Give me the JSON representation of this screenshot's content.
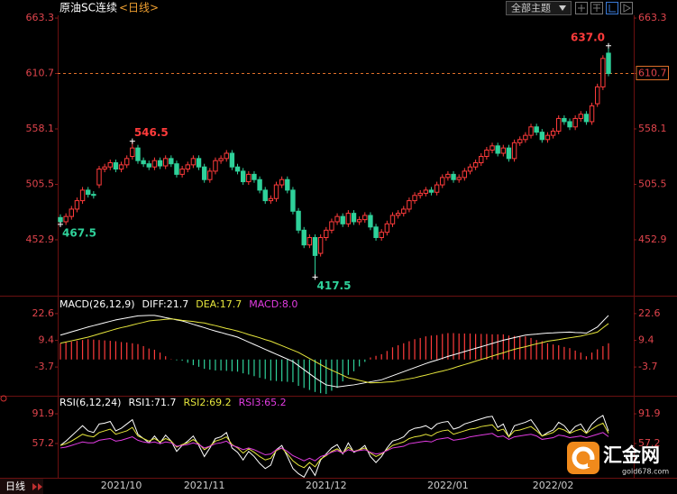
{
  "header": {
    "title": "原油SC连续",
    "period": "<日线>",
    "theme_button": "全部主题"
  },
  "footer": {
    "period": "日线",
    "logo": "汇金网",
    "site": "gold678.com"
  },
  "chart_data": [
    {
      "type": "candlestick",
      "categories": [
        null,
        null,
        null,
        null,
        null,
        null,
        null,
        null,
        null,
        null,
        null,
        "2021/10",
        null,
        null,
        null,
        null,
        null,
        null,
        null,
        null,
        null,
        null,
        null,
        null,
        null,
        null,
        "2021/11",
        null,
        null,
        null,
        null,
        null,
        null,
        null,
        null,
        null,
        null,
        null,
        null,
        null,
        null,
        null,
        null,
        null,
        null,
        null,
        null,
        null,
        "2021/12",
        null,
        null,
        null,
        null,
        null,
        null,
        null,
        null,
        null,
        null,
        null,
        null,
        null,
        null,
        null,
        null,
        null,
        null,
        null,
        null,
        null,
        "2022/01",
        null,
        null,
        null,
        null,
        null,
        null,
        null,
        null,
        null,
        null,
        null,
        null,
        null,
        null,
        null,
        null,
        null,
        null,
        "2022/02",
        null,
        null,
        null,
        null,
        null,
        null,
        null,
        null,
        null,
        null
      ],
      "open": [
        474,
        470,
        475,
        482,
        490,
        500,
        496,
        505,
        520,
        522,
        526,
        520,
        524,
        532,
        540,
        528,
        525,
        522,
        528,
        523,
        530,
        525,
        515,
        520,
        524,
        530,
        522,
        510,
        518,
        528,
        530,
        535,
        522,
        518,
        508,
        515,
        510,
        500,
        490,
        492,
        505,
        510,
        500,
        480,
        462,
        448,
        455,
        440,
        455,
        462,
        470,
        475,
        468,
        478,
        470,
        472,
        476,
        465,
        455,
        460,
        468,
        476,
        478,
        482,
        490,
        495,
        497,
        500,
        498,
        505,
        512,
        515,
        510,
        512,
        518,
        522,
        526,
        532,
        538,
        542,
        535,
        540,
        530,
        545,
        548,
        552,
        560,
        555,
        548,
        552,
        556,
        568,
        565,
        560,
        568,
        572,
        565,
        582,
        598,
        630
      ],
      "high": [
        477,
        478,
        485,
        493,
        503,
        503,
        499,
        523,
        525,
        529,
        529,
        527,
        533,
        546.5,
        543,
        531,
        528,
        531,
        531,
        533,
        533,
        528,
        523,
        527,
        533,
        533,
        525,
        521,
        531,
        533,
        538,
        538,
        525,
        521,
        518,
        518,
        513,
        503,
        495,
        508,
        513,
        513,
        503,
        483,
        465,
        458,
        458,
        458,
        465,
        473,
        478,
        478,
        481,
        481,
        475,
        479,
        479,
        468,
        463,
        471,
        479,
        481,
        485,
        493,
        498,
        500,
        503,
        503,
        508,
        515,
        518,
        518,
        515,
        521,
        525,
        529,
        535,
        541,
        545,
        545,
        543,
        543,
        548,
        551,
        555,
        563,
        563,
        558,
        555,
        559,
        571,
        571,
        568,
        571,
        575,
        575,
        583,
        601,
        628,
        637
      ],
      "low": [
        467.5,
        467,
        472,
        479,
        487,
        493,
        492,
        502,
        517,
        519,
        517,
        517,
        521,
        529,
        525,
        522,
        519,
        519,
        520,
        520,
        522,
        512,
        512,
        517,
        521,
        519,
        507,
        507,
        515,
        525,
        527,
        519,
        515,
        505,
        505,
        507,
        497,
        487,
        487,
        489,
        502,
        497,
        477,
        459,
        445,
        445,
        417.5,
        437,
        452,
        459,
        467,
        465,
        465,
        467,
        467,
        469,
        462,
        452,
        452,
        457,
        465,
        473,
        475,
        479,
        487,
        492,
        494,
        495,
        495,
        502,
        509,
        507,
        507,
        509,
        515,
        519,
        523,
        529,
        535,
        532,
        532,
        527,
        527,
        542,
        545,
        549,
        552,
        545,
        545,
        549,
        553,
        562,
        557,
        557,
        565,
        562,
        562,
        579,
        595,
        608
      ],
      "close": [
        470,
        475,
        482,
        490,
        500,
        496,
        495,
        520,
        522,
        526,
        520,
        524,
        530,
        540,
        528,
        525,
        522,
        528,
        523,
        530,
        525,
        515,
        520,
        524,
        530,
        522,
        510,
        518,
        528,
        530,
        535,
        522,
        518,
        508,
        515,
        510,
        500,
        490,
        492,
        505,
        510,
        500,
        480,
        462,
        448,
        455,
        438,
        455,
        462,
        470,
        475,
        468,
        478,
        470,
        472,
        476,
        465,
        455,
        460,
        468,
        476,
        478,
        482,
        490,
        495,
        497,
        500,
        498,
        505,
        512,
        515,
        510,
        512,
        518,
        522,
        526,
        532,
        538,
        542,
        535,
        540,
        530,
        545,
        548,
        552,
        560,
        555,
        548,
        552,
        556,
        568,
        565,
        560,
        568,
        572,
        565,
        580,
        598,
        625,
        610.7
      ],
      "up_color": "#ff3b3b",
      "down_color": "#2fd19a",
      "last_line_color": "#e0702a",
      "ylim": [
        402.4,
        665.9
      ],
      "yticks": [
        452.9,
        505.5,
        558.1,
        610.7,
        663.3
      ],
      "annotations": [
        {
          "text": "546.5",
          "value": 546.5
        },
        {
          "text": "467.5",
          "value": 467.5
        },
        {
          "text": "417.5",
          "value": 417.5
        },
        {
          "text": "637.0",
          "value": 637
        }
      ]
    },
    {
      "type": "macd",
      "title": "MACD(26,12,9)",
      "series": [
        {
          "name": "DIFF:21.7",
          "color": "#ffffff",
          "values": [
            12,
            12.8,
            13.6,
            14.4,
            15.2,
            16,
            16.7,
            17.4,
            18.1,
            18.8,
            19.5,
            20,
            20.5,
            21,
            21.5,
            21.6,
            21.7,
            21.7,
            21.2,
            20.6,
            20.1,
            19.5,
            19,
            18.2,
            17.3,
            16.5,
            15.7,
            14.8,
            14,
            13.3,
            12.5,
            11.8,
            11,
            9.8,
            8.6,
            7.4,
            6.2,
            5,
            3.8,
            2.6,
            1.4,
            0.2,
            -1,
            -3,
            -5,
            -7,
            -9,
            -10.8,
            -12.5,
            -13,
            -13.5,
            -13.2,
            -12.8,
            -12.5,
            -12,
            -11.5,
            -11,
            -10.5,
            -10,
            -9,
            -8,
            -7,
            -6,
            -5,
            -4,
            -3,
            -2,
            -1.1,
            -0.3,
            0.6,
            1.5,
            2.3,
            3.1,
            3.9,
            4.7,
            5.5,
            6.3,
            7.1,
            7.9,
            8.7,
            9.5,
            10.1,
            10.8,
            11.4,
            12,
            12.3,
            12.5,
            12.8,
            13,
            13.1,
            13.3,
            13.4,
            13.5,
            13.3,
            13.2,
            13,
            14.5,
            16,
            18.9,
            21.7
          ]
        },
        {
          "name": "DEA:17.7",
          "color": "#e6e63c",
          "values": [
            8,
            8.6,
            9.2,
            9.8,
            10.4,
            11,
            11.8,
            12.6,
            13.4,
            14.2,
            15,
            15.7,
            16.3,
            17,
            17.7,
            18.3,
            19,
            19.3,
            19.5,
            19.8,
            20,
            19.7,
            19.3,
            19,
            18.7,
            18.3,
            18,
            17.3,
            16.7,
            16,
            15.3,
            14.7,
            14,
            13.2,
            12.3,
            11.5,
            10.7,
            9.8,
            9,
            7.9,
            6.8,
            5.7,
            4.6,
            3.5,
            2,
            0.5,
            -1,
            -2.5,
            -4,
            -5.3,
            -6.5,
            -7.8,
            -9,
            -9.6,
            -10.3,
            -10.9,
            -11.5,
            -11.4,
            -11.3,
            -11.1,
            -11,
            -10.5,
            -10,
            -9.5,
            -9,
            -8.3,
            -7.7,
            -7,
            -6.3,
            -5.7,
            -5,
            -4.2,
            -3.3,
            -2.5,
            -1.7,
            -0.8,
            0,
            0.8,
            1.7,
            2.5,
            3.3,
            4.2,
            5,
            5.7,
            6.3,
            7,
            7.7,
            8.3,
            9,
            9.4,
            9.8,
            10.3,
            10.7,
            11.1,
            11.5,
            12.2,
            12.8,
            13.5,
            15.6,
            17.7
          ]
        },
        {
          "name": "MACD:8.0",
          "color": "#e23ce2",
          "kind": "bar",
          "values": [
            8,
            8.4,
            8.8,
            9.2,
            9.6,
            10,
            9.8,
            9.6,
            9.4,
            9.2,
            9,
            8.6,
            8.4,
            8,
            7.6,
            6.6,
            5.4,
            4.8,
            3.4,
            1.6,
            0.2,
            -0.4,
            -0.6,
            -1.6,
            -2.8,
            -3.6,
            -4.6,
            -5,
            -5.4,
            -5.4,
            -5.6,
            -5.8,
            -6,
            -6.8,
            -7.4,
            -8.2,
            -9,
            -9.6,
            -10.4,
            -10.6,
            -10.8,
            -11,
            -11.2,
            -13,
            -14,
            -15,
            -16,
            -16.6,
            -17,
            -15.4,
            -14,
            -10.8,
            -7.6,
            -5.8,
            -3.4,
            -1.2,
            1,
            1.8,
            2.6,
            4.2,
            6,
            7,
            8,
            9,
            10,
            10.6,
            11.4,
            11.8,
            12,
            12.6,
            13,
            13,
            12.8,
            12.8,
            12.8,
            12.6,
            12.6,
            12.6,
            12.4,
            12.4,
            12.4,
            11.8,
            11.6,
            11.4,
            11.4,
            10.6,
            9.6,
            9,
            8,
            7.4,
            7,
            6.2,
            5.6,
            4.4,
            3.4,
            1.6,
            3.4,
            5,
            6.6,
            8
          ]
        }
      ],
      "up_color": "#ff3b3b",
      "down_color": "#2fd19a",
      "ylim": [
        -18.3,
        30.1
      ],
      "yticks": [
        -3.7,
        9.4,
        22.6
      ]
    },
    {
      "type": "line",
      "title": "RSI(6,12,24)",
      "series": [
        {
          "name": "RSI1:71.7",
          "color": "#ffffff",
          "values": [
            55,
            60,
            66,
            72,
            78,
            72,
            70,
            80,
            81,
            83,
            72,
            75,
            80,
            85,
            68,
            63,
            58,
            66,
            58,
            67,
            60,
            48,
            55,
            60,
            66,
            55,
            42,
            52,
            63,
            65,
            70,
            52,
            47,
            38,
            48,
            42,
            34,
            28,
            32,
            50,
            55,
            42,
            28,
            22,
            18,
            30,
            20,
            38,
            45,
            52,
            56,
            45,
            58,
            47,
            50,
            55,
            42,
            35,
            42,
            52,
            60,
            62,
            65,
            72,
            75,
            76,
            78,
            74,
            80,
            82,
            83,
            74,
            76,
            80,
            82,
            84,
            86,
            88,
            89,
            76,
            80,
            65,
            78,
            80,
            82,
            85,
            76,
            66,
            70,
            73,
            82,
            78,
            70,
            77,
            80,
            70,
            80,
            86,
            90,
            71.7
          ]
        },
        {
          "name": "RSI2:69.2",
          "color": "#e6e63c",
          "values": [
            55,
            57,
            60,
            64,
            68,
            66,
            65,
            70,
            72,
            74,
            68,
            70,
            72,
            76,
            66,
            63,
            60,
            63,
            59,
            63,
            60,
            53,
            56,
            58,
            62,
            57,
            50,
            54,
            60,
            62,
            65,
            56,
            52,
            46,
            51,
            47,
            42,
            38,
            40,
            49,
            52,
            45,
            37,
            32,
            29,
            35,
            30,
            39,
            43,
            48,
            51,
            46,
            53,
            48,
            50,
            52,
            46,
            42,
            45,
            50,
            55,
            57,
            59,
            63,
            65,
            66,
            68,
            66,
            70,
            72,
            73,
            68,
            70,
            72,
            74,
            75,
            77,
            78,
            79,
            72,
            74,
            65,
            72,
            73,
            75,
            77,
            72,
            66,
            68,
            70,
            75,
            73,
            69,
            72,
            74,
            69,
            74,
            78,
            81,
            69.2
          ]
        },
        {
          "name": "RSI3:65.2",
          "color": "#e23ce2",
          "values": [
            52,
            53,
            55,
            57,
            59,
            58,
            58,
            61,
            62,
            63,
            60,
            61,
            63,
            65,
            61,
            59,
            58,
            59,
            57,
            59,
            58,
            54,
            55,
            56,
            58,
            56,
            52,
            54,
            57,
            58,
            60,
            55,
            53,
            50,
            52,
            50,
            47,
            44,
            45,
            50,
            52,
            48,
            43,
            40,
            37,
            40,
            37,
            42,
            44,
            47,
            49,
            46,
            50,
            48,
            49,
            50,
            47,
            45,
            46,
            49,
            52,
            53,
            54,
            57,
            58,
            59,
            60,
            59,
            62,
            63,
            64,
            61,
            62,
            63,
            65,
            66,
            67,
            68,
            69,
            65,
            66,
            62,
            65,
            66,
            67,
            68,
            66,
            62,
            63,
            64,
            67,
            66,
            64,
            65,
            66,
            64,
            66,
            68,
            70,
            65.2
          ]
        }
      ],
      "ylim": [
        17.2,
        101.4
      ],
      "yticks": [
        57.2,
        91.9
      ]
    }
  ]
}
